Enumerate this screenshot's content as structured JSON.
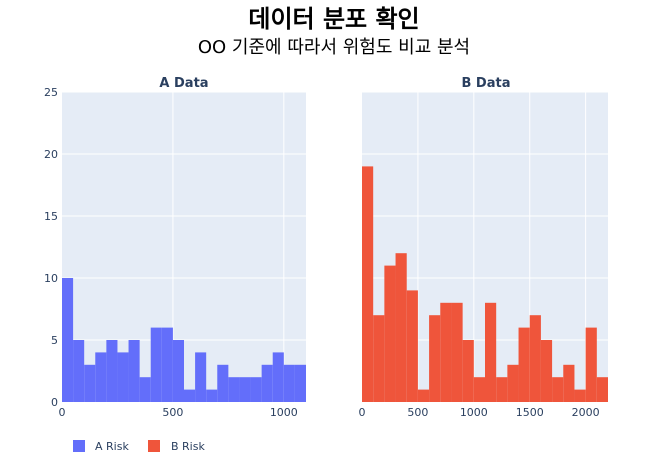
{
  "chart_data": {
    "type": "bar",
    "title": "데이터 분포 확인",
    "subtitle": "OO 기준에 따라서 위험도 비교 분석",
    "legend": {
      "placement": "bottom-left",
      "entries": [
        "A Risk",
        "B Risk"
      ]
    },
    "grid": true,
    "panels": [
      {
        "title": "A Data",
        "series_name": "A Risk",
        "color": "#636efa",
        "xlim": [
          0,
          1100
        ],
        "ylim": [
          0,
          25
        ],
        "x_ticks": [
          "0",
          "500",
          "1000"
        ],
        "x_tick_values": [
          0,
          500,
          1000
        ],
        "y_ticks": [
          "0",
          "5",
          "10",
          "15",
          "20",
          "25"
        ],
        "y_tick_values": [
          0,
          5,
          10,
          15,
          20,
          25
        ],
        "bin_width": 50,
        "bin_start": 0,
        "counts": [
          10,
          5,
          3,
          4,
          5,
          4,
          5,
          2,
          6,
          6,
          5,
          1,
          4,
          1,
          3,
          2,
          2,
          2,
          3,
          4,
          3,
          3
        ]
      },
      {
        "title": "B Data",
        "series_name": "B Risk",
        "color": "#ef553b",
        "xlim": [
          0,
          2200
        ],
        "ylim": [
          0,
          25
        ],
        "x_ticks": [
          "0",
          "500",
          "1000",
          "1500",
          "2000"
        ],
        "x_tick_values": [
          0,
          500,
          1000,
          1500,
          2000
        ],
        "y_ticks": [],
        "y_tick_values": [
          0,
          5,
          10,
          15,
          20,
          25
        ],
        "bin_width": 100,
        "bin_start": 0,
        "counts": [
          19,
          7,
          11,
          12,
          9,
          1,
          7,
          8,
          8,
          5,
          2,
          8,
          2,
          3,
          6,
          7,
          5,
          2,
          3,
          1,
          6,
          2
        ]
      }
    ]
  }
}
